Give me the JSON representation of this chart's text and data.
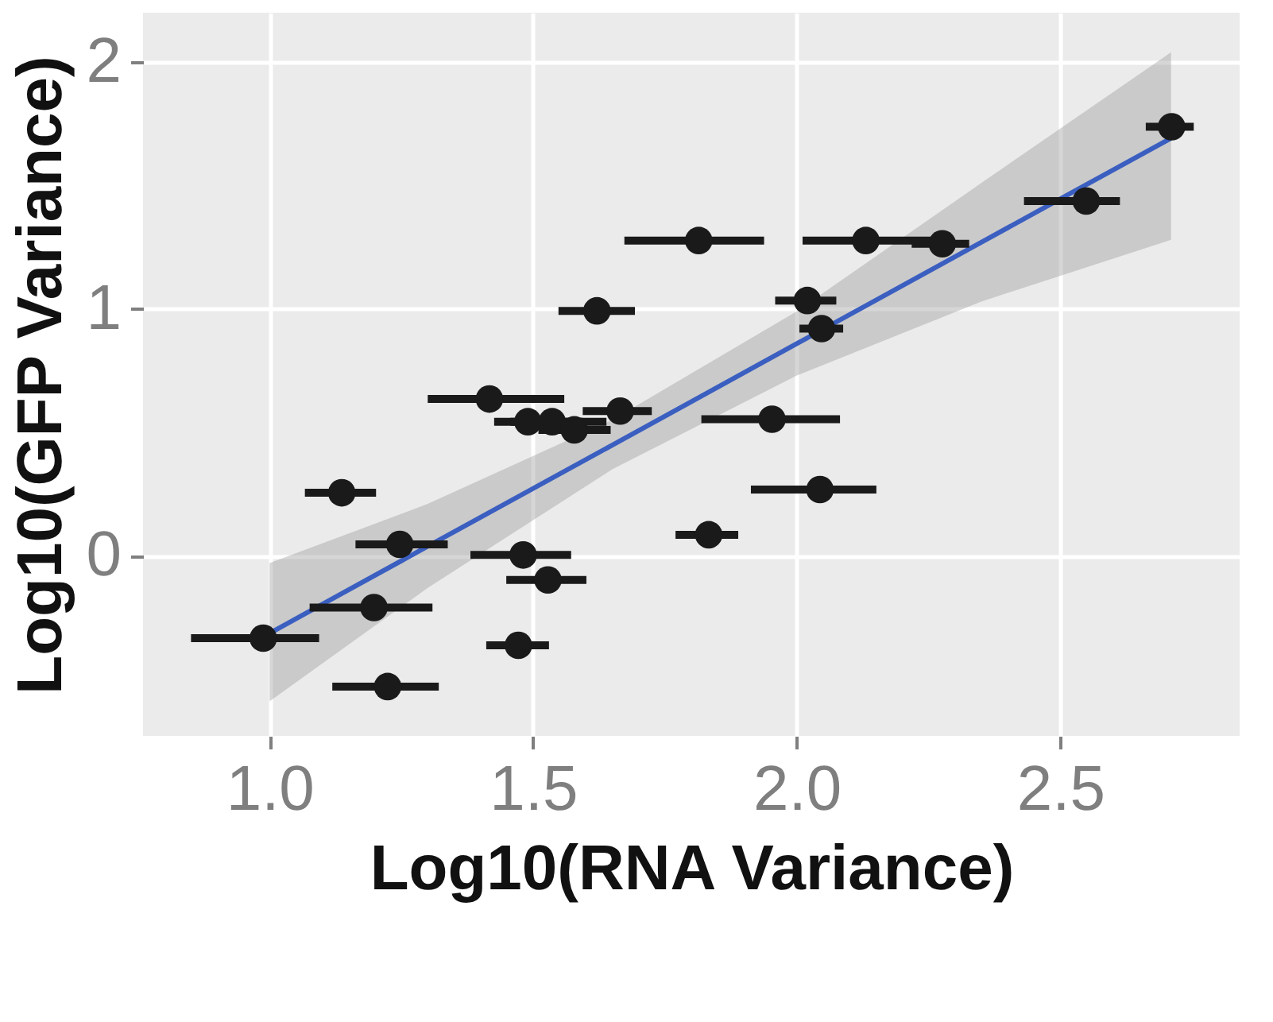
{
  "chart_data": {
    "type": "scatter",
    "xlabel": "Log10(RNA Variance)",
    "ylabel": "Log10(GFP Variance)",
    "xlim": [
      0.76,
      2.84
    ],
    "ylim": [
      -0.73,
      2.2
    ],
    "xticks": [
      {
        "value": 1.0,
        "label": "1.0"
      },
      1.5,
      {
        "value": 2.0,
        "label": "2.0"
      },
      2.5
    ],
    "yticks": [
      0,
      1,
      2
    ],
    "grid": true,
    "series": [
      {
        "type": "scatter",
        "color": "#1a1a1a",
        "marker": "circle",
        "x": [
          0.988,
          1.137,
          1.247,
          1.198,
          1.224,
          1.417,
          1.621,
          1.49,
          1.536,
          1.578,
          1.665,
          1.481,
          1.528,
          1.472,
          1.814,
          1.833,
          1.953,
          2.044,
          2.02,
          2.047,
          2.131,
          2.276,
          2.549,
          2.711
        ],
        "values": [
          -0.334,
          0.255,
          0.046,
          -0.21,
          -0.53,
          0.635,
          0.992,
          0.543,
          0.543,
          0.51,
          0.586,
          0.003,
          -0.098,
          -0.363,
          1.277,
          0.085,
          0.553,
          0.268,
          1.034,
          0.92,
          1.277,
          1.264,
          1.437,
          1.738
        ],
        "xerrors": [
          [
            0.851,
            1.094
          ],
          [
            1.067,
            1.202
          ],
          [
            1.163,
            1.338
          ],
          [
            1.076,
            1.309
          ],
          [
            1.119,
            1.321
          ],
          [
            1.3,
            1.559
          ],
          [
            1.548,
            1.693
          ],
          [
            1.426,
            1.594
          ],
          [
            1.457,
            1.639
          ],
          [
            1.51,
            1.647
          ],
          [
            1.594,
            1.725
          ],
          [
            1.381,
            1.572
          ],
          [
            1.449,
            1.601
          ],
          [
            1.411,
            1.53
          ],
          [
            1.673,
            1.938
          ],
          [
            1.77,
            1.889
          ],
          [
            1.819,
            2.082
          ],
          [
            1.913,
            2.151
          ],
          [
            1.959,
            2.075
          ],
          [
            2.005,
            2.088
          ],
          [
            2.011,
            2.263
          ],
          [
            2.218,
            2.327
          ],
          [
            2.431,
            2.613
          ],
          [
            2.662,
            2.753
          ]
        ]
      },
      {
        "type": "line",
        "color": "#3b5fc0",
        "marker": "none",
        "x": [
          1.0,
          1.3,
          1.65,
          2.0,
          2.35,
          2.71
        ],
        "values": [
          -0.314,
          0.038,
          0.448,
          0.859,
          1.27,
          1.692
        ],
        "lower": [
          -0.59,
          -0.13,
          0.35,
          0.73,
          1.03,
          1.28
        ],
        "upper": [
          -0.03,
          0.21,
          0.55,
          0.99,
          1.51,
          2.04
        ]
      }
    ]
  }
}
